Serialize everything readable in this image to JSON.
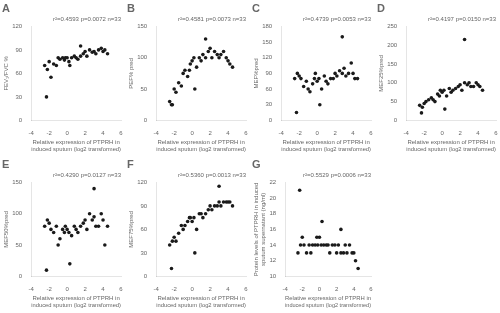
{
  "chart_data": [
    {
      "type": "scatter",
      "title": "A",
      "annotation": "r²=0.4593 p=0.0072 n=33",
      "ylabel": "FEV₁/FVC %",
      "xlabel": "Relative expression of PTPRH in\ninduced sputum (log2 transformed)",
      "xlim": [
        -4,
        6
      ],
      "ylim": [
        0,
        120
      ],
      "yticks": [
        0,
        30,
        60,
        90,
        120
      ],
      "xticks": [
        -4,
        -2,
        0,
        2,
        4,
        6
      ],
      "x": [
        -2.5,
        -2.2,
        -2.0,
        -1.8,
        -1.5,
        -1.2,
        -1.0,
        -0.8,
        -0.5,
        -0.3,
        -0.2,
        0.0,
        0.2,
        0.5,
        0.8,
        1.0,
        1.2,
        1.5,
        1.8,
        2.0,
        2.2,
        2.5,
        2.8,
        3.0,
        3.2,
        3.5,
        3.8,
        4.0,
        4.2,
        4.5,
        -2.3,
        0.3,
        1.5
      ],
      "values": [
        70,
        65,
        75,
        55,
        72,
        70,
        80,
        78,
        80,
        77,
        80,
        80,
        75,
        80,
        82,
        80,
        78,
        82,
        85,
        88,
        82,
        90,
        87,
        88,
        85,
        90,
        92,
        88,
        90,
        85,
        30,
        70,
        95
      ],
      "color": "#1a1a1a",
      "grid": false
    },
    {
      "type": "scatter",
      "title": "B",
      "annotation": "r²=0.4581 p=0.0073 n=33",
      "ylabel": "PEF% pred",
      "xlabel": "Relative expression of PTPRH in\ninduced sputum (log2 transformed)",
      "xlim": [
        -4,
        6
      ],
      "ylim": [
        0,
        150
      ],
      "yticks": [
        0,
        50,
        100,
        150
      ],
      "xticks": [
        -4,
        -2,
        0,
        2,
        4,
        6
      ],
      "x": [
        -2.5,
        -2.2,
        -2.0,
        -1.8,
        -1.5,
        -1.2,
        -1.0,
        -0.8,
        -0.5,
        -0.3,
        -0.2,
        0.0,
        0.2,
        0.5,
        0.8,
        1.0,
        1.2,
        1.5,
        1.8,
        2.0,
        2.2,
        2.5,
        2.8,
        3.0,
        3.2,
        3.5,
        3.8,
        4.0,
        4.2,
        4.5,
        -2.3,
        0.3,
        1.5
      ],
      "values": [
        30,
        25,
        50,
        45,
        60,
        55,
        75,
        80,
        70,
        80,
        90,
        95,
        100,
        85,
        100,
        95,
        105,
        100,
        110,
        115,
        100,
        110,
        105,
        100,
        105,
        110,
        100,
        95,
        90,
        85,
        25,
        50,
        130
      ],
      "color": "#1a1a1a",
      "grid": false
    },
    {
      "type": "scatter",
      "title": "C",
      "annotation": "r²=0.4739 p=0.0053 n=33",
      "ylabel": "MEF%pred",
      "xlabel": "Relative expression of PTPRH in\ninduced sputum (log2 transformed)",
      "xlim": [
        -4,
        6
      ],
      "ylim": [
        0,
        180
      ],
      "yticks": [
        0,
        30,
        60,
        90,
        120,
        150,
        180
      ],
      "xticks": [
        -4,
        -2,
        0,
        2,
        4,
        6
      ],
      "x": [
        -2.5,
        -2.2,
        -2.0,
        -1.8,
        -1.5,
        -1.2,
        -1.0,
        -0.8,
        -0.5,
        -0.3,
        -0.2,
        0.0,
        0.2,
        0.5,
        0.8,
        1.0,
        1.2,
        1.5,
        1.8,
        2.0,
        2.2,
        2.5,
        2.8,
        3.0,
        3.2,
        3.5,
        3.8,
        4.0,
        4.2,
        4.5,
        -2.3,
        0.3,
        2.8
      ],
      "values": [
        80,
        90,
        85,
        80,
        65,
        75,
        60,
        55,
        70,
        80,
        90,
        75,
        80,
        60,
        85,
        75,
        70,
        80,
        80,
        90,
        85,
        95,
        90,
        100,
        85,
        90,
        110,
        90,
        80,
        80,
        15,
        30,
        160
      ],
      "color": "#1a1a1a",
      "grid": false
    },
    {
      "type": "scatter",
      "title": "D",
      "annotation": "r²=0.4197 p=0.0150 n=33",
      "ylabel": "MEF25%pred",
      "xlabel": "Relative expression of PTPRH in\ninduced sputum (log2 transformed)",
      "xlim": [
        -4,
        6
      ],
      "ylim": [
        0,
        250
      ],
      "yticks": [
        0,
        50,
        100,
        150,
        200,
        250
      ],
      "xticks": [
        -4,
        -2,
        0,
        2,
        4,
        6
      ],
      "x": [
        -2.5,
        -2.2,
        -2.0,
        -1.8,
        -1.5,
        -1.2,
        -1.0,
        -0.8,
        -0.5,
        -0.3,
        -0.2,
        0.0,
        0.2,
        0.5,
        0.8,
        1.0,
        1.2,
        1.5,
        1.8,
        2.0,
        2.2,
        2.5,
        2.8,
        3.0,
        3.2,
        3.5,
        3.8,
        4.0,
        4.2,
        4.5,
        -2.3,
        0.3,
        2.5
      ],
      "values": [
        40,
        35,
        45,
        50,
        55,
        60,
        55,
        50,
        70,
        65,
        80,
        75,
        80,
        65,
        85,
        75,
        80,
        85,
        90,
        95,
        80,
        100,
        95,
        100,
        90,
        90,
        100,
        95,
        90,
        80,
        20,
        30,
        215
      ],
      "color": "#1a1a1a",
      "grid": false
    },
    {
      "type": "scatter",
      "title": "E",
      "annotation": "r²=0.4290 p=0.0127 n=33",
      "ylabel": "MEF50%pred",
      "xlabel": "Relative expression of PTPRH in\ninduced sputum (log2 transformed)",
      "xlim": [
        -4,
        6
      ],
      "ylim": [
        0,
        150
      ],
      "yticks": [
        0,
        50,
        100,
        150
      ],
      "xticks": [
        -4,
        -2,
        0,
        2,
        4,
        6
      ],
      "x": [
        -2.5,
        -2.2,
        -2.0,
        -1.8,
        -1.5,
        -1.2,
        -1.0,
        -0.8,
        -0.5,
        -0.3,
        -0.2,
        0.0,
        0.2,
        0.5,
        0.8,
        1.0,
        1.2,
        1.5,
        1.8,
        2.0,
        2.2,
        2.5,
        2.8,
        3.0,
        3.2,
        3.5,
        3.8,
        4.0,
        4.2,
        4.5,
        -2.3,
        0.3,
        3.0
      ],
      "values": [
        80,
        90,
        85,
        75,
        70,
        80,
        50,
        60,
        75,
        70,
        80,
        75,
        70,
        65,
        80,
        75,
        70,
        80,
        85,
        90,
        75,
        100,
        90,
        95,
        80,
        80,
        100,
        90,
        50,
        80,
        10,
        20,
        140
      ],
      "color": "#1a1a1a",
      "grid": false
    },
    {
      "type": "scatter",
      "title": "F",
      "annotation": "r²=0.5360 p=0.0013 n=33",
      "ylabel": "MEF75%pred",
      "xlabel": "Relative expression of PTPRH in\ninduced sputum (log2 transformed)",
      "xlim": [
        -4,
        6
      ],
      "ylim": [
        0,
        120
      ],
      "yticks": [
        0,
        30,
        60,
        90,
        120
      ],
      "xticks": [
        -4,
        -2,
        0,
        2,
        4,
        6
      ],
      "x": [
        -2.5,
        -2.2,
        -2.0,
        -1.8,
        -1.5,
        -1.2,
        -1.0,
        -0.8,
        -0.5,
        -0.3,
        -0.2,
        0.0,
        0.2,
        0.5,
        0.8,
        1.0,
        1.2,
        1.5,
        1.8,
        2.0,
        2.2,
        2.5,
        2.8,
        3.0,
        3.2,
        3.5,
        3.8,
        4.0,
        4.2,
        4.5,
        -2.3,
        0.3,
        3.0
      ],
      "values": [
        40,
        45,
        50,
        45,
        55,
        65,
        60,
        65,
        70,
        75,
        75,
        70,
        75,
        60,
        80,
        80,
        75,
        80,
        85,
        90,
        85,
        90,
        90,
        95,
        90,
        95,
        95,
        95,
        95,
        90,
        10,
        30,
        115
      ],
      "color": "#1a1a1a",
      "grid": false
    },
    {
      "type": "scatter",
      "title": "G",
      "annotation": "r²=0.5529 p=0.0006 n=33",
      "ylabel": "Protein levels of PTPRH in induced\nsputum supernatant (ng/ml)",
      "xlabel": "Relative expression of PTPRH in\ninduced sputum (log2 transformed)",
      "xlim": [
        -4,
        6
      ],
      "ylim": [
        10,
        22
      ],
      "yticks": [
        10,
        12,
        14,
        16,
        18,
        20,
        22
      ],
      "xticks": [
        -4,
        -2,
        0,
        2,
        4,
        6
      ],
      "x": [
        -2.5,
        -2.2,
        -2.0,
        -1.8,
        -1.5,
        -1.2,
        -1.0,
        -0.8,
        -0.5,
        -0.3,
        -0.2,
        0.0,
        0.2,
        0.5,
        0.8,
        1.0,
        1.2,
        1.5,
        1.8,
        2.0,
        2.2,
        2.5,
        2.8,
        3.0,
        3.2,
        3.5,
        3.8,
        4.0,
        4.2,
        4.5,
        -2.3,
        0.3,
        2.5
      ],
      "values": [
        13,
        14,
        15,
        14,
        13,
        14,
        13,
        14,
        14,
        15,
        14,
        15,
        14,
        14,
        14,
        14,
        13,
        14,
        14,
        13,
        14,
        13,
        13,
        14,
        13,
        14,
        13,
        13,
        12,
        11,
        21,
        17,
        16
      ],
      "color": "#1a1a1a",
      "grid": false
    }
  ]
}
